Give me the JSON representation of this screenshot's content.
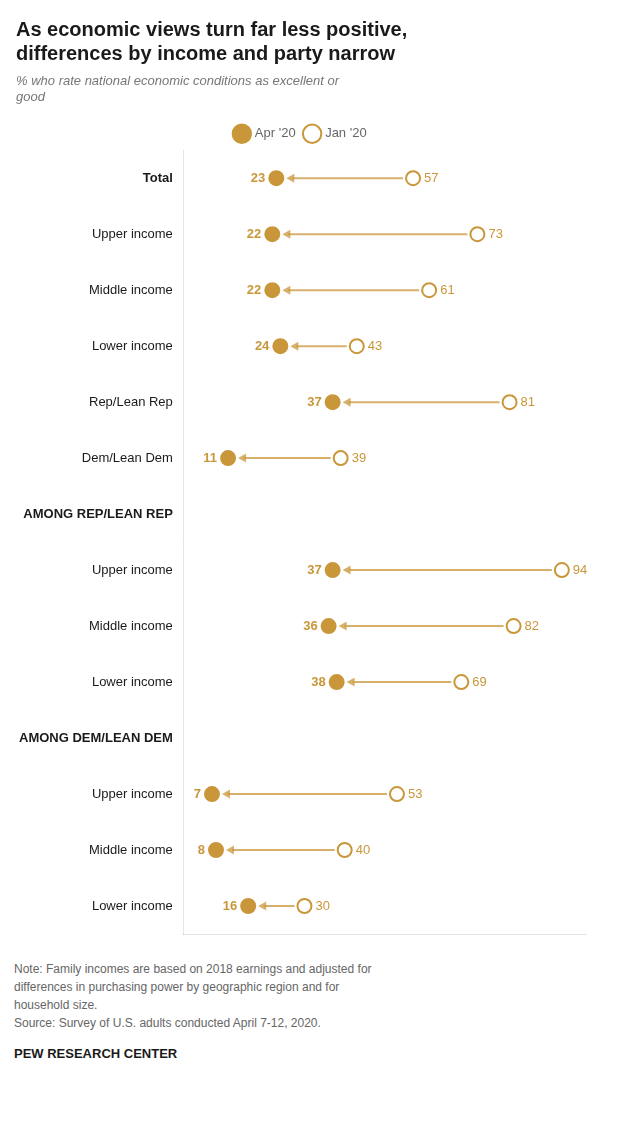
{
  "chart_data": {
    "type": "dot",
    "title": "As economic views turn far less positive,\ndifferences by income and party narrow",
    "subtitle": "% who rate national economic conditions as excellent or\ngood",
    "categories": [
      "Total",
      "Upper income",
      "Middle income",
      "Lower income",
      "Rep/Lean Rep",
      "Dem/Lean Dem",
      "AMONG REP/LEAN REP",
      "Upper income",
      "Middle income",
      "Lower income",
      "AMONG DEM/LEAN DEM",
      "Upper income",
      "Middle income",
      "Lower income"
    ],
    "series": [
      {
        "name": "Apr '20",
        "color": "#C9973A",
        "marker": "filled_circle",
        "values": [
          23,
          22,
          22,
          24,
          37,
          11,
          null,
          37,
          36,
          38,
          null,
          7,
          8,
          16
        ]
      },
      {
        "name": "Jan '20",
        "color": "#C9973A",
        "marker": "open_circle",
        "values": [
          57,
          73,
          61,
          43,
          81,
          39,
          null,
          94,
          82,
          69,
          null,
          53,
          40,
          30
        ]
      }
    ],
    "xlim": [
      0,
      100
    ],
    "grid": false,
    "legend": "top",
    "data_labels": true,
    "tick_labels": "y",
    "note": "Note: Family incomes are based on 2018 earnings and adjusted for\ndifferences in purchasing power by geographic region and for\nhousehold size.\nSource: Survey of U.S. adults conducted April 7-12, 2020.",
    "footer": "PEW RESEARCH CENTER"
  }
}
